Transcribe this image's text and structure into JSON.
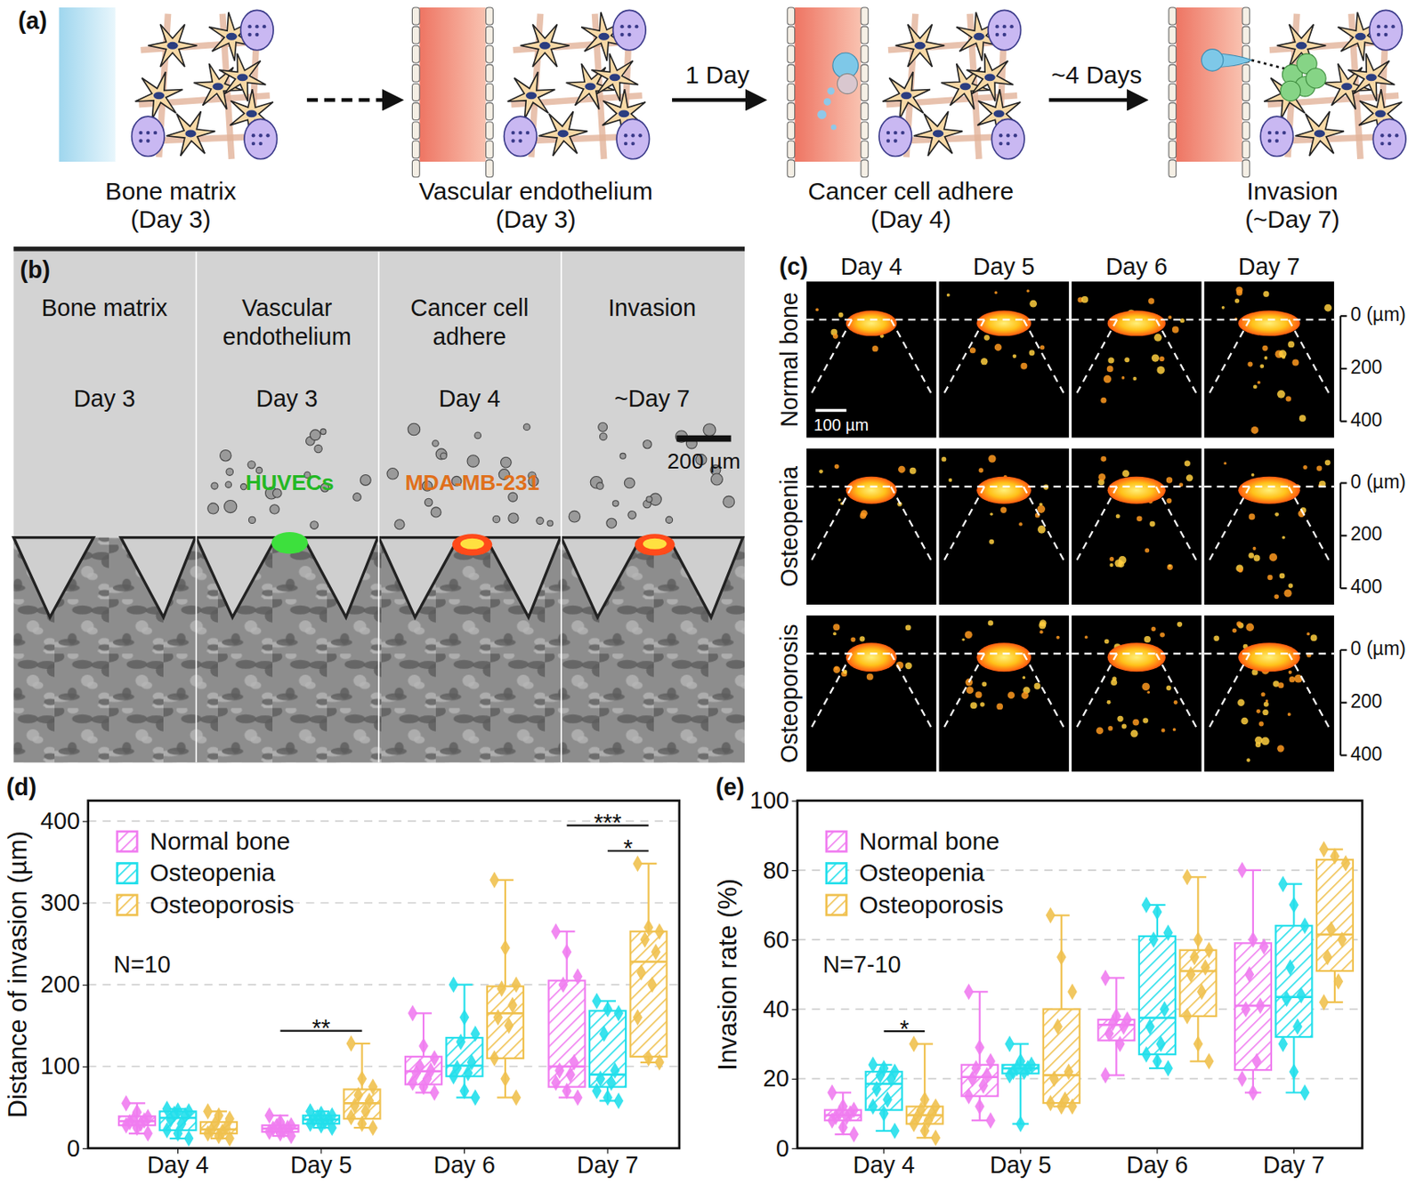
{
  "panel_a": {
    "label": "(a)",
    "steps": [
      {
        "title": "Bone matrix",
        "day": "(Day 3)"
      },
      {
        "title": "Vascular endothelium",
        "day": "(Day 3)"
      },
      {
        "title": "Cancer cell adhere",
        "day": "(Day 4)",
        "arrow_label": "1 Day"
      },
      {
        "title": "Invasion",
        "day": "(~Day 7)",
        "arrow_label": "~4 Days"
      }
    ]
  },
  "panel_b": {
    "label": "(b)",
    "stages": [
      {
        "title": "Bone matrix",
        "day": "Day 3"
      },
      {
        "title": "Vascular endothelium",
        "day": "Day 3",
        "cell_label": "HUVECs"
      },
      {
        "title": "Cancer cell adhere",
        "day": "Day 4",
        "cell_label": "MDA-MB-231"
      },
      {
        "title": "Invasion",
        "day": "~Day 7"
      }
    ],
    "scale_bar": "200 µm"
  },
  "panel_c": {
    "label": "(c)",
    "columns": [
      "Day 4",
      "Day 5",
      "Day 6",
      "Day 7"
    ],
    "rows": [
      "Normal bone",
      "Osteopenia",
      "Osteoporosis"
    ],
    "scale_bar": "100 µm",
    "depth_axis": [
      {
        "value": 0,
        "label": "0 (µm)"
      },
      200,
      400
    ]
  },
  "chart_data": [
    {
      "type": "box",
      "panel_label": "(d)",
      "ylabel": "Distance of invasion (µm)",
      "categories": [
        "Day 4",
        "Day 5",
        "Day 6",
        "Day 7"
      ],
      "marker": "diamond",
      "series": [
        {
          "name": "Normal bone",
          "color": "#f07cf0",
          "values": [
            [
              55,
              44,
              38,
              35,
              34,
              32,
              30,
              28,
              25,
              18
            ],
            [
              40,
              32,
              28,
              27,
              25,
              24,
              22,
              20,
              18,
              15
            ],
            [
              165,
              125,
              110,
              100,
              95,
              92,
              85,
              80,
              75,
              68
            ],
            [
              265,
              240,
              210,
              200,
              105,
              95,
              90,
              80,
              70,
              62
            ]
          ],
          "boxes": [
            {
              "min": 18,
              "q1": 28,
              "median": 33,
              "q3": 39,
              "max": 55
            },
            {
              "min": 15,
              "q1": 20,
              "median": 24,
              "q3": 28,
              "max": 40
            },
            {
              "min": 68,
              "q1": 78,
              "median": 94,
              "q3": 112,
              "max": 165
            },
            {
              "min": 62,
              "q1": 75,
              "median": 100,
              "q3": 205,
              "max": 265
            }
          ]
        },
        {
          "name": "Osteopenia",
          "color": "#22dfeb",
          "values": [
            [
              48,
              46,
              45,
              42,
              40,
              35,
              30,
              22,
              18,
              12
            ],
            [
              45,
              42,
              40,
              38,
              36,
              35,
              33,
              30,
              28,
              25
            ],
            [
              200,
              160,
              140,
              130,
              105,
              98,
              92,
              88,
              70,
              62
            ],
            [
              180,
              170,
              165,
              140,
              95,
              85,
              80,
              70,
              62,
              58
            ]
          ],
          "boxes": [
            {
              "min": 12,
              "q1": 22,
              "median": 37,
              "q3": 45,
              "max": 48
            },
            {
              "min": 25,
              "q1": 30,
              "median": 35,
              "q3": 40,
              "max": 45
            },
            {
              "min": 62,
              "q1": 88,
              "median": 101,
              "q3": 135,
              "max": 200
            },
            {
              "min": 58,
              "q1": 75,
              "median": 90,
              "q3": 168,
              "max": 180
            }
          ]
        },
        {
          "name": "Osteoporosis",
          "color": "#f0c14f",
          "values": [
            [
              45,
              40,
              36,
              30,
              25,
              22,
              20,
              18,
              15,
              12
            ],
            [
              128,
              85,
              75,
              65,
              58,
              52,
              45,
              38,
              30,
              25
            ],
            [
              328,
              245,
              200,
              195,
              175,
              160,
              150,
              110,
              85,
              62
            ],
            [
              348,
              270,
              265,
              255,
              240,
              215,
              200,
              160,
              110,
              105
            ]
          ],
          "boxes": [
            {
              "min": 12,
              "q1": 18,
              "median": 23,
              "q3": 32,
              "max": 45
            },
            {
              "min": 25,
              "q1": 36,
              "median": 55,
              "q3": 72,
              "max": 128
            },
            {
              "min": 62,
              "q1": 110,
              "median": 165,
              "q3": 198,
              "max": 328
            },
            {
              "min": 105,
              "q1": 112,
              "median": 228,
              "q3": 265,
              "max": 348
            }
          ]
        }
      ],
      "ylim": [
        0,
        425
      ],
      "yticks": [
        0,
        100,
        200,
        300,
        400
      ],
      "grid": true,
      "legend": "upper left",
      "annotations": [
        "N=10"
      ],
      "significance": [
        {
          "category": "Day 5",
          "between": [
            "Normal bone",
            "Osteoporosis"
          ],
          "text": "**"
        },
        {
          "category": "Day 7",
          "between": [
            "Osteopenia",
            "Osteoporosis"
          ],
          "text": "*"
        },
        {
          "category": "Day 7",
          "between": [
            "Normal bone",
            "Osteoporosis"
          ],
          "text": "***"
        }
      ]
    },
    {
      "type": "box",
      "panel_label": "(e)",
      "ylabel": "Invasion rate (%)",
      "categories": [
        "Day 4",
        "Day 5",
        "Day 6",
        "Day 7"
      ],
      "marker": "diamond",
      "series": [
        {
          "name": "Normal bone",
          "color": "#f07cf0",
          "values": [
            [
              16,
              12,
              11,
              10,
              10,
              9,
              9,
              8,
              6,
              4
            ],
            [
              45,
              29,
              25,
              23,
              21,
              20,
              18,
              15,
              12,
              8
            ],
            [
              49,
              38,
              37,
              36,
              35,
              33,
              30,
              21
            ],
            [
              80,
              60,
              58,
              50,
              41,
              40,
              25,
              20,
              16
            ]
          ],
          "boxes": [
            {
              "min": 4,
              "q1": 8,
              "median": 9.5,
              "q3": 11,
              "max": 16
            },
            {
              "min": 8,
              "q1": 15,
              "median": 20.5,
              "q3": 24,
              "max": 45
            },
            {
              "min": 21,
              "q1": 31,
              "median": 35.5,
              "q3": 37,
              "max": 49
            },
            {
              "min": 16,
              "q1": 22.5,
              "median": 41,
              "q3": 59,
              "max": 80
            }
          ]
        },
        {
          "name": "Osteopenia",
          "color": "#22dfeb",
          "values": [
            [
              24,
              23,
              22,
              21,
              20,
              17,
              14,
              12,
              10,
              5
            ],
            [
              30,
              25,
              24,
              23,
              23,
              22,
              22,
              21,
              7
            ],
            [
              70,
              68,
              62,
              60,
              40,
              35,
              30,
              27,
              25,
              23
            ],
            [
              76,
              70,
              64,
              52,
              44,
              43,
              35,
              30,
              22,
              16
            ]
          ],
          "boxes": [
            {
              "min": 5,
              "q1": 11,
              "median": 18.5,
              "q3": 22,
              "max": 24
            },
            {
              "min": 7,
              "q1": 21.5,
              "median": 23,
              "q3": 24,
              "max": 30
            },
            {
              "min": 23,
              "q1": 27,
              "median": 37.5,
              "q3": 61,
              "max": 70
            },
            {
              "min": 16,
              "q1": 32,
              "median": 43.5,
              "q3": 64,
              "max": 76
            }
          ]
        },
        {
          "name": "Osteoporosis",
          "color": "#f0c14f",
          "values": [
            [
              30,
              14,
              12,
              11,
              10,
              9,
              8,
              7,
              5,
              3
            ],
            [
              67,
              55,
              45,
              35,
              22,
              20,
              14,
              13,
              12,
              12
            ],
            [
              78,
              60,
              57,
              55,
              52,
              50,
              45,
              38,
              30,
              25
            ],
            [
              86,
              84,
              82,
              63,
              60,
              55,
              48,
              42
            ]
          ],
          "boxes": [
            {
              "min": 3,
              "q1": 7,
              "median": 9.5,
              "q3": 12,
              "max": 30
            },
            {
              "min": 12,
              "q1": 13,
              "median": 21,
              "q3": 40,
              "max": 67
            },
            {
              "min": 25,
              "q1": 38,
              "median": 51,
              "q3": 57,
              "max": 78
            },
            {
              "min": 42,
              "q1": 51,
              "median": 61.5,
              "q3": 83,
              "max": 86
            }
          ]
        }
      ],
      "ylim": [
        0,
        100
      ],
      "yticks": [
        0,
        20,
        40,
        60,
        80,
        100
      ],
      "grid": true,
      "legend": "upper left",
      "annotations": [
        "N=7-10"
      ],
      "significance": [
        {
          "category": "Day 4",
          "between": [
            "Osteopenia",
            "Osteoporosis"
          ],
          "text": "*"
        }
      ]
    }
  ]
}
